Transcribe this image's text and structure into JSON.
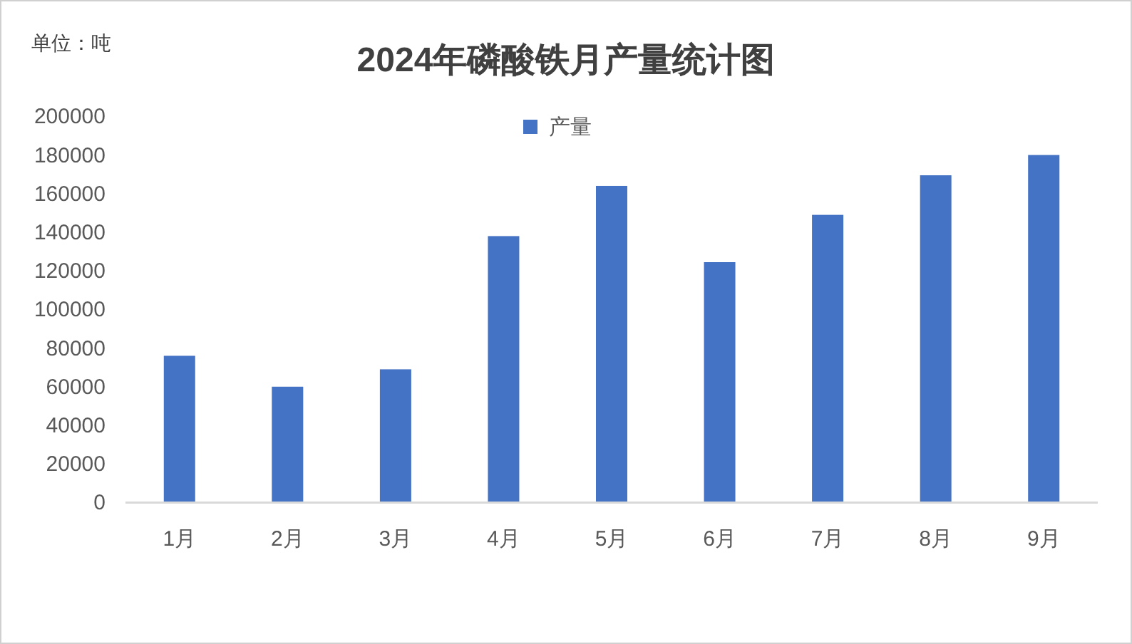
{
  "chart_data": {
    "type": "bar",
    "title": "2024年磷酸铁月产量统计图",
    "annotations": [
      "单位：吨"
    ],
    "categories": [
      "1月",
      "2月",
      "3月",
      "4月",
      "5月",
      "6月",
      "7月",
      "8月",
      "9月"
    ],
    "series": [
      {
        "name": "产量",
        "color": "#4472c4",
        "values": [
          76000,
          60000,
          69000,
          138000,
          164000,
          124500,
          149000,
          169500,
          180000
        ]
      }
    ],
    "ylim": [
      0,
      200000
    ],
    "yticks": [
      0,
      20000,
      40000,
      60000,
      80000,
      100000,
      120000,
      140000,
      160000,
      180000,
      200000
    ],
    "grid": false,
    "legend": "top"
  }
}
